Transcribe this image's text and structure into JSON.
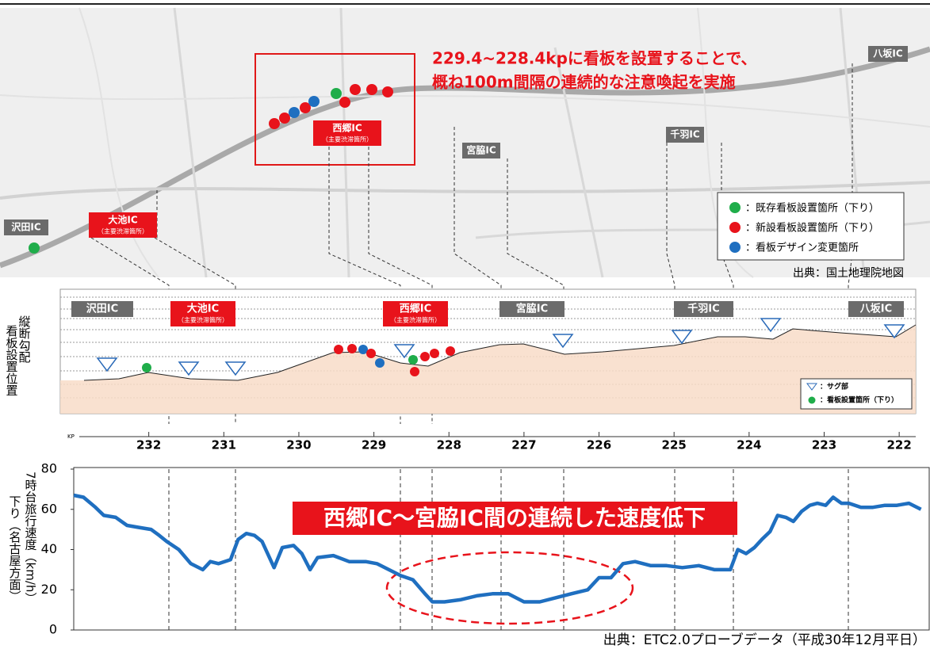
{
  "map": {
    "callout": [
      "229.4~228.4kpに看板を設置することで、",
      "概ね100m間隔の連続的な注意喚起を実施"
    ],
    "ic_labels": [
      "沢田IC",
      "大池IC",
      "西郷IC",
      "宮脇IC",
      "千羽IC",
      "八坂IC"
    ],
    "major_congestion": "（主要渋滞箇所）",
    "legend": [
      "：既存看板設置箇所（下り）",
      "：新設看板設置箇所（下り）",
      "：看板デザイン変更箇所"
    ],
    "source": "出典：国土地理院地図"
  },
  "profile": {
    "ic_labels": [
      "沢田IC",
      "大池IC",
      "西郷IC",
      "宮脇IC",
      "千羽IC",
      "八坂IC"
    ],
    "y_label": [
      "縦断勾配",
      "看板設置位置"
    ],
    "legend": [
      "：サグ部",
      "：看板設置箇所（下り）"
    ],
    "axis_label": "KP"
  },
  "chart_data": {
    "type": "line",
    "y_label": [
      "7時台旅行速度（km/h）",
      "下り（名古屋方面）"
    ],
    "annotation": "西郷IC～宮脇IC間の連続した速度低下",
    "source": "出典：ETC2.0プローブデータ（平成30年12月平日）",
    "color": "#1f6fc0",
    "xlim": [
      233.0,
      221.6
    ],
    "xticks": [
      232,
      231,
      230,
      229,
      228,
      227,
      226,
      225,
      224,
      223,
      222
    ],
    "ylim": [
      0,
      80
    ],
    "yticks": [
      0,
      20,
      40,
      60,
      80
    ],
    "x": [
      233.0,
      232.87,
      232.71,
      232.6,
      232.44,
      232.29,
      232.13,
      231.97,
      231.86,
      231.76,
      231.6,
      231.44,
      231.28,
      231.18,
      231.07,
      230.91,
      230.81,
      230.7,
      230.59,
      230.49,
      230.33,
      230.22,
      230.07,
      229.96,
      229.85,
      229.75,
      229.54,
      229.33,
      229.11,
      228.96,
      228.8,
      228.64,
      228.48,
      228.32,
      228.22,
      228.06,
      227.85,
      227.63,
      227.42,
      227.21,
      227.0,
      226.79,
      226.58,
      226.37,
      226.15,
      226.0,
      225.84,
      225.68,
      225.52,
      225.31,
      225.1,
      224.89,
      224.67,
      224.46,
      224.25,
      224.15,
      224.04,
      223.93,
      223.83,
      223.72,
      223.62,
      223.51,
      223.41,
      223.3,
      223.19,
      223.09,
      222.98,
      222.88,
      222.77,
      222.67,
      222.51,
      222.35,
      222.19,
      222.03,
      221.87,
      221.71
    ],
    "values": [
      67,
      66,
      61,
      57,
      56,
      52,
      51,
      50,
      47,
      44,
      40,
      33,
      30,
      34,
      33,
      35,
      45,
      48,
      47,
      44,
      31,
      41,
      42,
      38,
      30,
      36,
      37,
      34,
      34,
      33,
      30,
      27,
      25,
      18,
      14,
      14,
      15,
      17,
      18,
      18,
      14,
      14,
      16,
      18,
      20,
      26,
      26,
      33,
      34,
      32,
      32,
      31,
      32,
      30,
      30,
      40,
      38,
      41,
      45,
      49,
      57,
      56,
      54,
      59,
      62,
      63,
      62,
      66,
      63,
      63,
      61,
      61,
      62,
      62,
      63,
      60
    ]
  }
}
